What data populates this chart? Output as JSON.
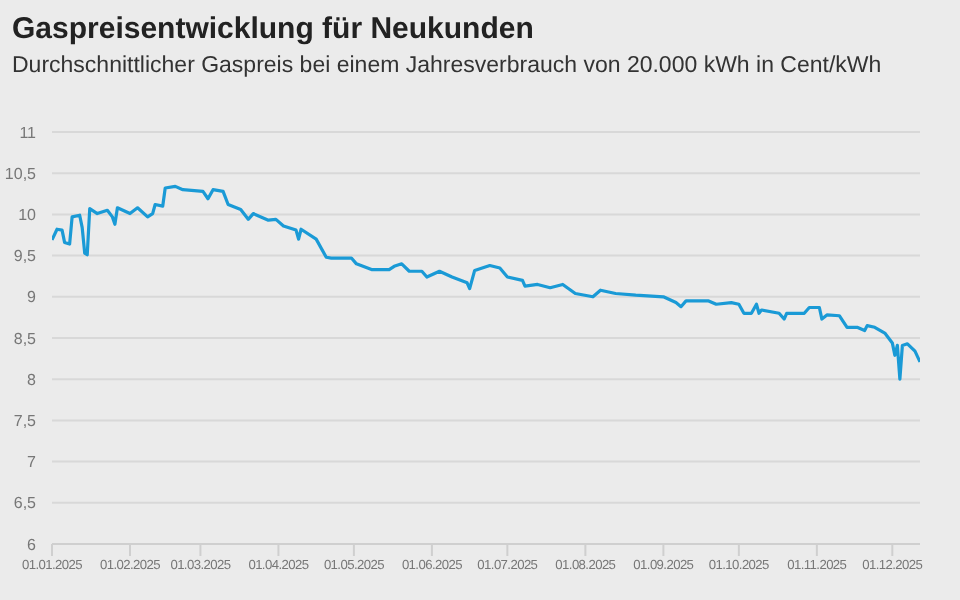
{
  "chart_data": {
    "type": "line",
    "title": "Gaspreisentwicklung für Neukunden",
    "subtitle": "Durchschnittlicher Gaspreis bei einem Jahresverbrauch von 20.000 kWh in Cent/kWh",
    "x": [
      "2025-01-01",
      "2025-01-03",
      "2025-01-05",
      "2025-01-06",
      "2025-01-08",
      "2025-01-09",
      "2025-01-12",
      "2025-01-13",
      "2025-01-14",
      "2025-01-15",
      "2025-01-16",
      "2025-01-19",
      "2025-01-23",
      "2025-01-25",
      "2025-01-26",
      "2025-01-27",
      "2025-02-01",
      "2025-02-04",
      "2025-02-08",
      "2025-02-10",
      "2025-02-11",
      "2025-02-14",
      "2025-02-15",
      "2025-02-19",
      "2025-02-22",
      "2025-03-02",
      "2025-03-04",
      "2025-03-06",
      "2025-03-10",
      "2025-03-12",
      "2025-03-17",
      "2025-03-20",
      "2025-03-22",
      "2025-03-28",
      "2025-03-31",
      "2025-04-03",
      "2025-04-08",
      "2025-04-09",
      "2025-04-10",
      "2025-04-16",
      "2025-04-20",
      "2025-04-22",
      "2025-04-30",
      "2025-05-02",
      "2025-05-08",
      "2025-05-15",
      "2025-05-17",
      "2025-05-20",
      "2025-05-23",
      "2025-05-28",
      "2025-05-30",
      "2025-06-04",
      "2025-06-09",
      "2025-06-15",
      "2025-06-16",
      "2025-06-18",
      "2025-06-24",
      "2025-06-28",
      "2025-07-01",
      "2025-07-07",
      "2025-07-08",
      "2025-07-13",
      "2025-07-18",
      "2025-07-23",
      "2025-07-28",
      "2025-08-04",
      "2025-08-07",
      "2025-08-13",
      "2025-08-21",
      "2025-09-01",
      "2025-09-06",
      "2025-09-08",
      "2025-09-10",
      "2025-09-19",
      "2025-09-22",
      "2025-09-28",
      "2025-10-01",
      "2025-10-03",
      "2025-10-06",
      "2025-10-08",
      "2025-10-09",
      "2025-10-10",
      "2025-10-17",
      "2025-10-19",
      "2025-10-20",
      "2025-10-27",
      "2025-10-29",
      "2025-11-02",
      "2025-11-03",
      "2025-11-05",
      "2025-11-10",
      "2025-11-13",
      "2025-11-17",
      "2025-11-20",
      "2025-11-21",
      "2025-11-24",
      "2025-11-28",
      "2025-12-01",
      "2025-12-02",
      "2025-12-03",
      "2025-12-04",
      "2025-12-05",
      "2025-12-07",
      "2025-12-10",
      "2025-12-12"
    ],
    "series": [
      {
        "color": "#1a9ad6",
        "values": [
          9.69,
          9.82,
          9.81,
          9.66,
          9.64,
          9.97,
          9.99,
          9.84,
          9.53,
          9.51,
          10.07,
          10.01,
          10.05,
          9.97,
          9.88,
          10.08,
          10.01,
          10.08,
          9.97,
          10.01,
          10.12,
          10.1,
          10.32,
          10.34,
          10.3,
          10.28,
          10.19,
          10.3,
          10.28,
          10.12,
          10.06,
          9.94,
          10.01,
          9.93,
          9.94,
          9.86,
          9.81,
          9.7,
          9.82,
          9.7,
          9.48,
          9.47,
          9.47,
          9.4,
          9.33,
          9.33,
          9.37,
          9.4,
          9.31,
          9.31,
          9.24,
          9.31,
          9.24,
          9.17,
          9.1,
          9.32,
          9.38,
          9.35,
          9.24,
          9.2,
          9.13,
          9.15,
          9.11,
          9.15,
          9.04,
          9.0,
          9.08,
          9.04,
          9.02,
          9.0,
          8.93,
          8.88,
          8.95,
          8.95,
          8.91,
          8.93,
          8.91,
          8.8,
          8.8,
          8.91,
          8.8,
          8.84,
          8.8,
          8.73,
          8.8,
          8.8,
          8.87,
          8.87,
          8.73,
          8.78,
          8.77,
          8.63,
          8.63,
          8.59,
          8.65,
          8.63,
          8.56,
          8.44,
          8.29,
          8.41,
          8.0,
          8.41,
          8.43,
          8.34,
          8.21
        ]
      }
    ],
    "xlim": [
      "2025-01-01",
      "2025-12-12"
    ],
    "xticks": [
      {
        "value": "2025-01-01",
        "label": "01.01.2025"
      },
      {
        "value": "2025-02-01",
        "label": "01.02.2025"
      },
      {
        "value": "2025-03-01",
        "label": "01.03.2025"
      },
      {
        "value": "2025-04-01",
        "label": "01.04.2025"
      },
      {
        "value": "2025-05-01",
        "label": "01.05.2025"
      },
      {
        "value": "2025-06-01",
        "label": "01.06.2025"
      },
      {
        "value": "2025-07-01",
        "label": "01.07.2025"
      },
      {
        "value": "2025-08-01",
        "label": "01.08.2025"
      },
      {
        "value": "2025-09-01",
        "label": "01.09.2025"
      },
      {
        "value": "2025-10-01",
        "label": "01.10.2025"
      },
      {
        "value": "2025-11-01",
        "label": "01.11.2025"
      },
      {
        "value": "2025-12-01",
        "label": "01.12.2025"
      }
    ],
    "ylim": [
      6,
      11
    ],
    "yticks": [
      6,
      {
        "value": 6.5,
        "label": "6,5"
      },
      7,
      {
        "value": 7.5,
        "label": "7,5"
      },
      8,
      {
        "value": 8.5,
        "label": "8,5"
      },
      9,
      {
        "value": 9.5,
        "label": "9,5"
      },
      10,
      {
        "value": 10.5,
        "label": "10,5"
      },
      11
    ],
    "grid": "y",
    "legend": false,
    "marker": "none",
    "line_style": "solid"
  }
}
